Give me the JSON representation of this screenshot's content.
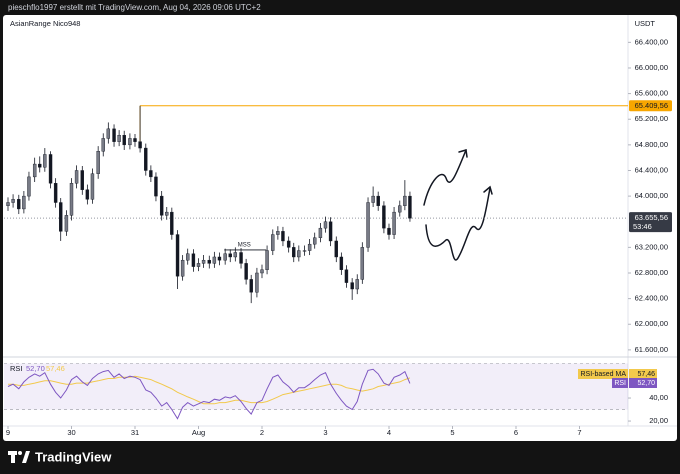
{
  "header": {
    "text": "pieschflo1997 erstellt mit TradingView.com, Aug 04, 2026 09:06 UTC+2"
  },
  "footer": {
    "brand": "TradingView"
  },
  "chart_data": {
    "type": "candlestick",
    "title": "AsianRange Nico948",
    "currency": "USDT",
    "up_color": "#787b86",
    "down_color": "#131722",
    "wick_color": "#131722",
    "xlim": [
      -0.063,
      9.764
    ],
    "xticks": [
      {
        "value": 0,
        "label": "9"
      },
      {
        "value": 1,
        "label": "30"
      },
      {
        "value": 2,
        "label": "31"
      },
      {
        "value": 3,
        "label": "Aug"
      },
      {
        "value": 4,
        "label": "2"
      },
      {
        "value": 5,
        "label": "3"
      },
      {
        "value": 6,
        "label": "4"
      },
      {
        "value": 7,
        "label": "5"
      },
      {
        "value": 8,
        "label": "6"
      },
      {
        "value": 9,
        "label": "7"
      }
    ],
    "ylim": [
      61520,
      66780
    ],
    "yticks": [
      {
        "value": 66400,
        "label": "66.400,00"
      },
      {
        "value": 66000,
        "label": "66.000,00"
      },
      {
        "value": 65600,
        "label": "65.600,00"
      },
      {
        "value": 65200,
        "label": "65.200,00"
      },
      {
        "value": 64800,
        "label": "64.800,00"
      },
      {
        "value": 64400,
        "label": "64.400,00"
      },
      {
        "value": 64000,
        "label": "64.000,00"
      },
      {
        "value": 63200,
        "label": "63.200,00"
      },
      {
        "value": 62800,
        "label": "62.800,00"
      },
      {
        "value": 62400,
        "label": "62.400,00"
      },
      {
        "value": 62000,
        "label": "62.000,00"
      },
      {
        "value": 61600,
        "label": "61.600,00"
      }
    ],
    "level": {
      "value": 65409.56,
      "label": "65.409,56",
      "color": "#f7a600",
      "x_start": 2.08
    },
    "last_price": {
      "value": 63655.56,
      "label": "63.655,56",
      "countdown": "53:46"
    },
    "annotations": [
      {
        "text": "MSS",
        "x": 3.72,
        "y": 63160
      }
    ],
    "x": [
      0,
      0.08,
      0.17,
      0.25,
      0.33,
      0.42,
      0.5,
      0.58,
      0.67,
      0.75,
      0.83,
      0.92,
      1,
      1.08,
      1.17,
      1.25,
      1.33,
      1.42,
      1.5,
      1.58,
      1.67,
      1.75,
      1.83,
      1.92,
      2,
      2.08,
      2.17,
      2.25,
      2.33,
      2.42,
      2.5,
      2.58,
      2.67,
      2.75,
      2.83,
      2.92,
      3,
      3.08,
      3.17,
      3.25,
      3.33,
      3.42,
      3.5,
      3.58,
      3.67,
      3.75,
      3.83,
      3.92,
      4,
      4.08,
      4.17,
      4.25,
      4.33,
      4.42,
      4.5,
      4.58,
      4.67,
      4.75,
      4.83,
      4.92,
      5,
      5.08,
      5.17,
      5.25,
      5.33,
      5.42,
      5.5,
      5.58,
      5.67,
      5.75,
      5.83,
      5.92,
      6,
      6.08,
      6.17,
      6.25,
      6.33
    ],
    "ohlc": [
      [
        63850,
        63980,
        63770,
        63900
      ],
      [
        63900,
        64030,
        63820,
        63950
      ],
      [
        63950,
        64020,
        63720,
        63800
      ],
      [
        63800,
        64080,
        63730,
        64000
      ],
      [
        64000,
        64380,
        63930,
        64300
      ],
      [
        64300,
        64600,
        64220,
        64500
      ],
      [
        64500,
        64620,
        64370,
        64450
      ],
      [
        64450,
        64750,
        64380,
        64650
      ],
      [
        64650,
        64700,
        64120,
        64200
      ],
      [
        64200,
        64280,
        63820,
        63900
      ],
      [
        63900,
        63970,
        63300,
        63450
      ],
      [
        63450,
        63780,
        63380,
        63700
      ],
      [
        63700,
        64280,
        63620,
        64200
      ],
      [
        64200,
        64480,
        64120,
        64400
      ],
      [
        64400,
        64470,
        64020,
        64100
      ],
      [
        64100,
        64180,
        63870,
        63950
      ],
      [
        63950,
        64430,
        63880,
        64350
      ],
      [
        64350,
        64780,
        64270,
        64700
      ],
      [
        64700,
        64980,
        64620,
        64900
      ],
      [
        64900,
        65150,
        64820,
        65050
      ],
      [
        65050,
        65120,
        64770,
        64850
      ],
      [
        64850,
        65030,
        64780,
        64950
      ],
      [
        64950,
        65020,
        64720,
        64800
      ],
      [
        64800,
        64980,
        64730,
        64900
      ],
      [
        64900,
        64970,
        64770,
        64850
      ],
      [
        64850,
        65409.56,
        64680,
        64750
      ],
      [
        64750,
        64820,
        64320,
        64400
      ],
      [
        64400,
        64480,
        64220,
        64300
      ],
      [
        64300,
        64370,
        63920,
        64000
      ],
      [
        64000,
        64080,
        63620,
        63700
      ],
      [
        63700,
        63830,
        63630,
        63750
      ],
      [
        63750,
        63820,
        63320,
        63400
      ],
      [
        63400,
        63470,
        62550,
        62750
      ],
      [
        62750,
        63080,
        62680,
        63000
      ],
      [
        63000,
        63180,
        62930,
        63100
      ],
      [
        63100,
        63170,
        62820,
        62900
      ],
      [
        62900,
        63030,
        62830,
        62950
      ],
      [
        62950,
        63080,
        62880,
        63000
      ],
      [
        63000,
        63070,
        62870,
        62950
      ],
      [
        62950,
        63130,
        62880,
        63050
      ],
      [
        63050,
        63120,
        62920,
        63000
      ],
      [
        63000,
        63180,
        62930,
        63100
      ],
      [
        63100,
        63170,
        62970,
        63050
      ],
      [
        63050,
        63200,
        62980,
        63120
      ],
      [
        63120,
        63190,
        62870,
        62950
      ],
      [
        62950,
        63020,
        62620,
        62700
      ],
      [
        62700,
        62770,
        62330,
        62500
      ],
      [
        62500,
        62880,
        62420,
        62800
      ],
      [
        62800,
        62930,
        62720,
        62850
      ],
      [
        62850,
        63230,
        62780,
        63150
      ],
      [
        63150,
        63480,
        63080,
        63400
      ],
      [
        63400,
        63530,
        63320,
        63450
      ],
      [
        63450,
        63520,
        63220,
        63300
      ],
      [
        63300,
        63370,
        63120,
        63200
      ],
      [
        63200,
        63270,
        62970,
        63050
      ],
      [
        63050,
        63230,
        62980,
        63150
      ],
      [
        63150,
        63230,
        63070,
        63150
      ],
      [
        63150,
        63330,
        63080,
        63250
      ],
      [
        63250,
        63430,
        63180,
        63350
      ],
      [
        63350,
        63580,
        63280,
        63500
      ],
      [
        63500,
        63680,
        63430,
        63600
      ],
      [
        63600,
        63670,
        63220,
        63300
      ],
      [
        63300,
        63370,
        62970,
        63050
      ],
      [
        63050,
        63120,
        62770,
        62850
      ],
      [
        62850,
        62920,
        62570,
        62650
      ],
      [
        62650,
        62720,
        62380,
        62550
      ],
      [
        62550,
        62780,
        62470,
        62700
      ],
      [
        62700,
        63280,
        62630,
        63200
      ],
      [
        63200,
        63980,
        63130,
        63900
      ],
      [
        63900,
        64150,
        63830,
        64000
      ],
      [
        64000,
        64070,
        63770,
        63850
      ],
      [
        63850,
        63920,
        63420,
        63500
      ],
      [
        63500,
        63570,
        63320,
        63400
      ],
      [
        63400,
        63830,
        63330,
        63750
      ],
      [
        63750,
        63930,
        63680,
        63850
      ],
      [
        63850,
        64250,
        63780,
        64000
      ],
      [
        64000,
        64070,
        63600,
        63655.56
      ]
    ],
    "rsi": {
      "name": "RSI",
      "ylim": [
        15.7,
        71.3
      ],
      "yticks": [
        {
          "value": 40,
          "label": "40,00"
        },
        {
          "value": 20,
          "label": "20,00"
        }
      ],
      "band": [
        30,
        70
      ],
      "band_color": "#7e57c2",
      "series": [
        {
          "name": "RSI",
          "color": "#7e57c2",
          "value_label": "52,70",
          "values": [
            50,
            52,
            48,
            54,
            58,
            61,
            59,
            62,
            52,
            45,
            40,
            47,
            56,
            59,
            54,
            51,
            57,
            61,
            63,
            64,
            58,
            61,
            57,
            59,
            58,
            56,
            47,
            45,
            40,
            33,
            36,
            30,
            22,
            32,
            36,
            33,
            35,
            37,
            36,
            39,
            38,
            41,
            40,
            42,
            37,
            31,
            26,
            36,
            38,
            48,
            58,
            60,
            54,
            50,
            45,
            49,
            49,
            52,
            56,
            60,
            62,
            52,
            44,
            38,
            33,
            30,
            37,
            52,
            64,
            65,
            61,
            53,
            51,
            58,
            60,
            63,
            52.7
          ]
        },
        {
          "name": "RSI-based MA",
          "color": "#f2c94c",
          "value_label": "57,46",
          "values": [
            52,
            52,
            51,
            51,
            52,
            53,
            54,
            55,
            55,
            54,
            53,
            52,
            52,
            53,
            53,
            53,
            54,
            55,
            56,
            57,
            57,
            58,
            58,
            58,
            59,
            58,
            57,
            56,
            54,
            52,
            50,
            48,
            45,
            43,
            41,
            39,
            37,
            35,
            35,
            35,
            36,
            36,
            37,
            38,
            38,
            37,
            36,
            36,
            36,
            37,
            39,
            41,
            43,
            44,
            45,
            46,
            47,
            48,
            49,
            50,
            51,
            52,
            52,
            51,
            49,
            48,
            47,
            46,
            47,
            48,
            50,
            51,
            52,
            53,
            54,
            56,
            57.46
          ]
        }
      ]
    }
  }
}
